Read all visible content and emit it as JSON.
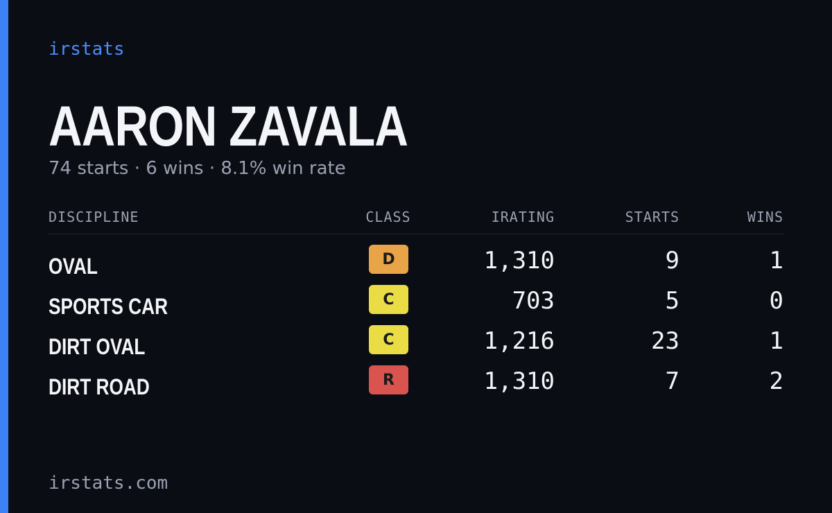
{
  "header": {
    "brand": "irstats",
    "name": "AARON ZAVALA",
    "summary": "74 starts · 6 wins · 8.1% win rate"
  },
  "table": {
    "columns": [
      "DISCIPLINE",
      "CLASS",
      "IRATING",
      "STARTS",
      "WINS"
    ],
    "rows": [
      {
        "discipline": "OVAL",
        "class": "D",
        "class_color": "#e8a447",
        "irating": "1,310",
        "starts": 9,
        "wins": 1
      },
      {
        "discipline": "SPORTS CAR",
        "class": "C",
        "class_color": "#e9dc45",
        "irating": "703",
        "starts": 5,
        "wins": 0
      },
      {
        "discipline": "DIRT OVAL",
        "class": "C",
        "class_color": "#e9dc45",
        "irating": "1,216",
        "starts": 23,
        "wins": 1
      },
      {
        "discipline": "DIRT ROAD",
        "class": "R",
        "class_color": "#d9534f",
        "irating": "1,310",
        "starts": 7,
        "wins": 2
      }
    ]
  },
  "footer": {
    "domain": "irstats.com"
  }
}
